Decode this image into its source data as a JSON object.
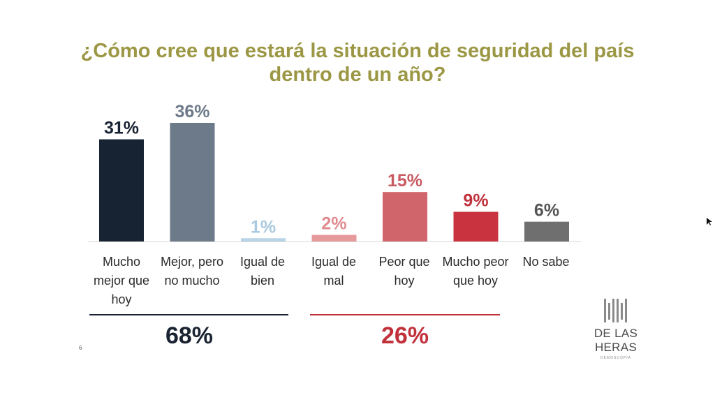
{
  "slide": {
    "number": "6"
  },
  "logo": {
    "name": "DE LAS HERAS",
    "subtitle": "DEMOSCOPIA"
  },
  "colors": {
    "title": "#9b9744",
    "better_group": "#1a2331",
    "worse_group": "#c0313c"
  },
  "chart_data": {
    "type": "bar",
    "title": "¿Cómo cree que estará la situación de seguridad del país dentro de un año?",
    "categories": [
      "Mucho mejor que hoy",
      "Mejor, pero no mucho",
      "Igual de bien",
      "Igual de mal",
      "Peor que hoy",
      "Mucho peor que hoy",
      "No sabe"
    ],
    "values": [
      31,
      36,
      1,
      2,
      15,
      9,
      6
    ],
    "value_labels": [
      "31%",
      "36%",
      "1%",
      "2%",
      "15%",
      "9%",
      "6%"
    ],
    "bar_colors": [
      "#172332",
      "#6d7a8a",
      "#b8d4e6",
      "#e79a9c",
      "#d0656c",
      "#c93340",
      "#6f6f6f"
    ],
    "label_colors": [
      "#172332",
      "#6d7a8a",
      "#a9c9df",
      "#e08a8e",
      "#c95a62",
      "#c0313c",
      "#555555"
    ],
    "unit": "%",
    "grid": false,
    "groups": [
      {
        "categories": [
          "Mucho mejor que hoy",
          "Mejor, pero no mucho",
          "Igual de bien"
        ],
        "total": "68%",
        "color": "#1a2331"
      },
      {
        "categories": [
          "Igual de mal",
          "Peor que hoy",
          "Mucho peor que hoy"
        ],
        "total": "26%",
        "color": "#c0313c"
      }
    ]
  }
}
